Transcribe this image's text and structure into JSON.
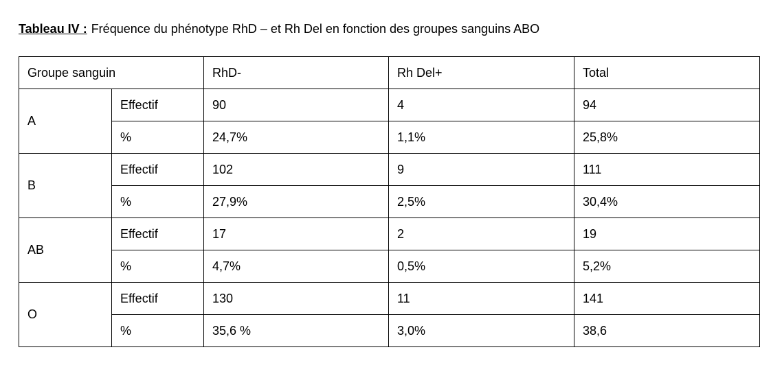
{
  "caption": {
    "label": "Tableau IV :",
    "text": "Fréquence du phénotype RhD – et Rh Del en fonction des groupes sanguins ABO"
  },
  "table": {
    "header": [
      "Groupe sanguin",
      "RhD-",
      "Rh Del+",
      "Total"
    ],
    "groups": [
      {
        "name": "A",
        "rows": [
          {
            "measure": "Effectif",
            "cells": [
              "90",
              "4",
              "94"
            ]
          },
          {
            "measure": "%",
            "cells": [
              "24,7%",
              "1,1%",
              "25,8%"
            ]
          }
        ]
      },
      {
        "name": "B",
        "rows": [
          {
            "measure": "Effectif",
            "cells": [
              "102",
              "9",
              "111"
            ]
          },
          {
            "measure": "%",
            "cells": [
              "27,9%",
              "2,5%",
              "30,4%"
            ]
          }
        ]
      },
      {
        "name": "AB",
        "rows": [
          {
            "measure": "Effectif",
            "cells": [
              "17",
              "2",
              "19"
            ]
          },
          {
            "measure": "%",
            "cells": [
              "4,7%",
              "0,5%",
              "5,2%"
            ]
          }
        ]
      },
      {
        "name": "O",
        "rows": [
          {
            "measure": "Effectif",
            "cells": [
              "130",
              "11",
              "141"
            ]
          },
          {
            "measure": "%",
            "cells": [
              "35,6 %",
              "3,0%",
              "38,6"
            ]
          }
        ]
      }
    ]
  }
}
